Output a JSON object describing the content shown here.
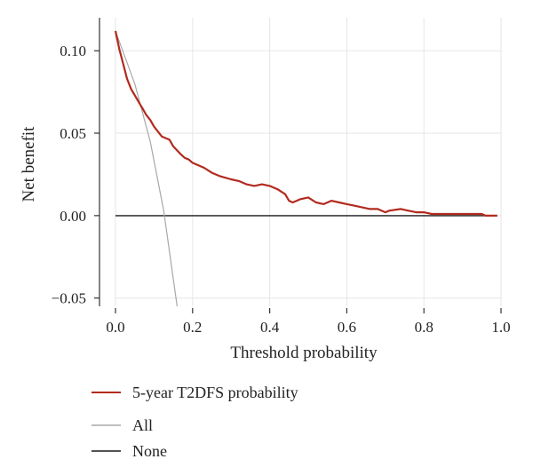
{
  "chart_data": {
    "type": "line",
    "title": "",
    "xlabel": "Threshold probability",
    "ylabel": "Net benefit",
    "xlim": [
      0.0,
      1.0
    ],
    "ylim": [
      -0.055,
      0.12
    ],
    "xticks": [
      0.0,
      0.2,
      0.4,
      0.6,
      0.8,
      1.0
    ],
    "xtick_labels": [
      "0.0",
      "0.2",
      "0.4",
      "0.6",
      "0.8",
      "1.0"
    ],
    "yticks": [
      -0.05,
      0.0,
      0.05,
      0.1
    ],
    "ytick_labels": [
      "−0.05",
      "0.00",
      "0.05",
      "0.10"
    ],
    "grid": true,
    "legend_position": "bottom-left",
    "series": [
      {
        "name": "5-year T2DFS probability",
        "color": "#b22a1e",
        "x": [
          0.0,
          0.01,
          0.02,
          0.03,
          0.04,
          0.05,
          0.06,
          0.07,
          0.08,
          0.09,
          0.1,
          0.11,
          0.12,
          0.14,
          0.15,
          0.17,
          0.18,
          0.19,
          0.2,
          0.21,
          0.23,
          0.25,
          0.27,
          0.3,
          0.32,
          0.34,
          0.36,
          0.38,
          0.4,
          0.42,
          0.44,
          0.45,
          0.46,
          0.48,
          0.5,
          0.52,
          0.54,
          0.56,
          0.58,
          0.6,
          0.62,
          0.64,
          0.66,
          0.68,
          0.7,
          0.71,
          0.74,
          0.76,
          0.78,
          0.8,
          0.82,
          0.85,
          0.88,
          0.92,
          0.95,
          0.96,
          0.99
        ],
        "y": [
          0.112,
          0.101,
          0.092,
          0.083,
          0.077,
          0.073,
          0.069,
          0.065,
          0.061,
          0.058,
          0.054,
          0.051,
          0.048,
          0.046,
          0.042,
          0.037,
          0.035,
          0.034,
          0.032,
          0.031,
          0.029,
          0.026,
          0.024,
          0.022,
          0.021,
          0.019,
          0.018,
          0.019,
          0.018,
          0.016,
          0.013,
          0.009,
          0.008,
          0.01,
          0.011,
          0.008,
          0.007,
          0.009,
          0.008,
          0.007,
          0.006,
          0.005,
          0.004,
          0.004,
          0.002,
          0.003,
          0.004,
          0.003,
          0.002,
          0.002,
          0.001,
          0.001,
          0.001,
          0.001,
          0.001,
          0.0,
          0.0
        ]
      },
      {
        "name": "All",
        "color": "#a8a8a8",
        "x": [
          0.0,
          0.05,
          0.09,
          0.125,
          0.16
        ],
        "y": [
          0.112,
          0.08,
          0.045,
          0.003,
          -0.055
        ]
      },
      {
        "name": "None",
        "color": "#1a1a1a",
        "x": [
          0.0,
          0.99
        ],
        "y": [
          0.0,
          0.0
        ]
      }
    ]
  }
}
